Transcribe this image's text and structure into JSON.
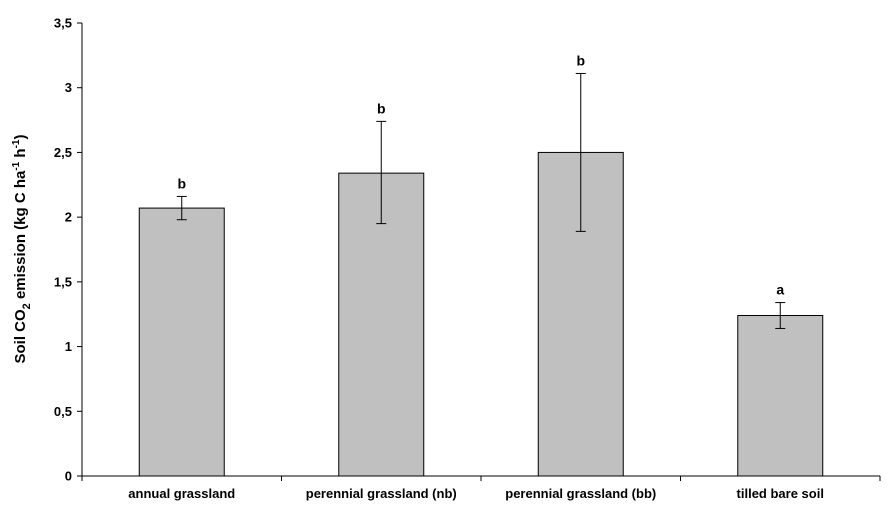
{
  "chart_data": {
    "type": "bar",
    "categories": [
      "annual grassland",
      "perennial grassland (nb)",
      "perennial grassland (bb)",
      "tilled bare soil"
    ],
    "values": [
      2.07,
      2.34,
      2.5,
      1.24
    ],
    "error_low": [
      1.98,
      1.95,
      1.89,
      1.14
    ],
    "error_high": [
      2.16,
      2.74,
      3.11,
      1.34
    ],
    "significance_labels": [
      "b",
      "b",
      "b",
      "a"
    ],
    "ylabel": {
      "prefix": "Soil CO",
      "sub": "2",
      "middle": " emission (kg C ha",
      "sup1": "-1",
      "middle2": " h",
      "sup2": "-1",
      "suffix": ")"
    },
    "xlabel": "",
    "yticks": [
      "0",
      "0,5",
      "1",
      "1,5",
      "2",
      "2,5",
      "3",
      "3,5"
    ],
    "ylim": [
      0,
      3.5
    ],
    "grid": false,
    "bar_color": "#c0c0c0"
  }
}
